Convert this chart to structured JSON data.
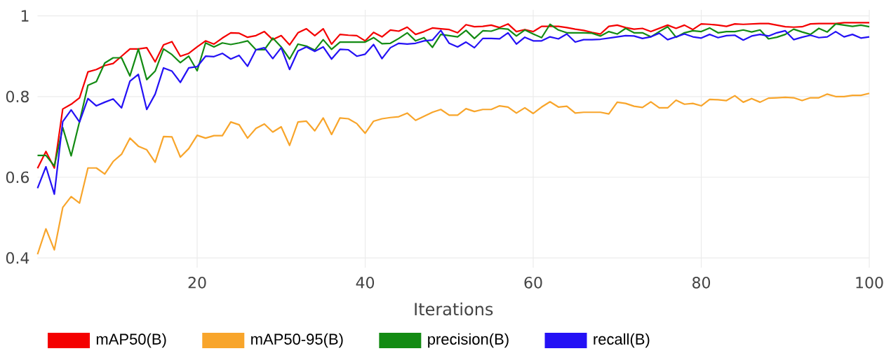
{
  "chart_data": {
    "type": "line",
    "xlabel": "Iterations",
    "x": [
      1,
      2,
      3,
      4,
      5,
      6,
      7,
      8,
      9,
      10,
      11,
      12,
      13,
      14,
      15,
      16,
      17,
      18,
      19,
      20,
      21,
      22,
      23,
      24,
      25,
      26,
      27,
      28,
      29,
      30,
      31,
      32,
      33,
      34,
      35,
      36,
      37,
      38,
      39,
      40,
      41,
      42,
      43,
      44,
      45,
      46,
      47,
      48,
      49,
      50,
      51,
      52,
      53,
      54,
      55,
      56,
      57,
      58,
      59,
      60,
      61,
      62,
      63,
      64,
      65,
      66,
      67,
      68,
      69,
      70,
      71,
      72,
      73,
      74,
      75,
      76,
      77,
      78,
      79,
      80,
      81,
      82,
      83,
      84,
      85,
      86,
      87,
      88,
      89,
      90,
      91,
      92,
      93,
      94,
      95,
      96,
      97,
      98,
      99,
      100
    ],
    "xlim": [
      1,
      100
    ],
    "xticks": [
      20,
      40,
      60,
      80,
      100
    ],
    "ylim": [
      0.376,
      1.015
    ],
    "yticks": [
      0.4,
      0.6,
      0.8,
      1
    ],
    "grid": true,
    "legend": "bottom",
    "series": [
      {
        "name": "mAP50(B)",
        "color": "#f40000",
        "values": [
          0.622,
          0.664,
          0.623,
          0.769,
          0.781,
          0.797,
          0.861,
          0.867,
          0.877,
          0.882,
          0.9,
          0.918,
          0.918,
          0.921,
          0.886,
          0.928,
          0.936,
          0.9,
          0.907,
          0.923,
          0.938,
          0.93,
          0.945,
          0.958,
          0.957,
          0.947,
          0.951,
          0.961,
          0.941,
          0.951,
          0.928,
          0.958,
          0.968,
          0.951,
          0.968,
          0.93,
          0.954,
          0.952,
          0.951,
          0.938,
          0.959,
          0.948,
          0.965,
          0.962,
          0.972,
          0.954,
          0.961,
          0.97,
          0.968,
          0.966,
          0.958,
          0.978,
          0.973,
          0.974,
          0.977,
          0.971,
          0.98,
          0.961,
          0.966,
          0.961,
          0.974,
          0.974,
          0.974,
          0.971,
          0.967,
          0.964,
          0.959,
          0.955,
          0.974,
          0.977,
          0.971,
          0.967,
          0.969,
          0.961,
          0.969,
          0.977,
          0.969,
          0.977,
          0.966,
          0.98,
          0.979,
          0.977,
          0.974,
          0.98,
          0.979,
          0.98,
          0.981,
          0.981,
          0.977,
          0.973,
          0.972,
          0.973,
          0.98,
          0.981,
          0.981,
          0.981,
          0.983,
          0.983,
          0.983,
          0.983
        ]
      },
      {
        "name": "mAP50-95(B)",
        "color": "#f8a52b",
        "values": [
          0.409,
          0.472,
          0.42,
          0.525,
          0.552,
          0.536,
          0.623,
          0.623,
          0.608,
          0.639,
          0.657,
          0.697,
          0.677,
          0.668,
          0.637,
          0.701,
          0.7,
          0.65,
          0.671,
          0.704,
          0.697,
          0.703,
          0.703,
          0.737,
          0.73,
          0.697,
          0.721,
          0.732,
          0.712,
          0.725,
          0.679,
          0.737,
          0.739,
          0.715,
          0.747,
          0.706,
          0.747,
          0.745,
          0.733,
          0.709,
          0.739,
          0.745,
          0.748,
          0.75,
          0.759,
          0.741,
          0.751,
          0.761,
          0.768,
          0.754,
          0.754,
          0.77,
          0.763,
          0.768,
          0.768,
          0.777,
          0.774,
          0.759,
          0.772,
          0.758,
          0.774,
          0.787,
          0.774,
          0.776,
          0.759,
          0.761,
          0.761,
          0.761,
          0.757,
          0.786,
          0.783,
          0.776,
          0.773,
          0.787,
          0.772,
          0.772,
          0.791,
          0.781,
          0.783,
          0.777,
          0.793,
          0.792,
          0.79,
          0.802,
          0.786,
          0.795,
          0.786,
          0.796,
          0.797,
          0.798,
          0.797,
          0.79,
          0.797,
          0.797,
          0.806,
          0.8,
          0.8,
          0.803,
          0.803,
          0.808
        ]
      },
      {
        "name": "precision(B)",
        "color": "#138b13",
        "values": [
          0.654,
          0.654,
          0.628,
          0.723,
          0.653,
          0.738,
          0.828,
          0.837,
          0.883,
          0.896,
          0.896,
          0.851,
          0.918,
          0.842,
          0.863,
          0.918,
          0.904,
          0.884,
          0.9,
          0.864,
          0.933,
          0.923,
          0.933,
          0.929,
          0.933,
          0.938,
          0.916,
          0.916,
          0.945,
          0.923,
          0.893,
          0.93,
          0.925,
          0.915,
          0.941,
          0.917,
          0.935,
          0.935,
          0.935,
          0.935,
          0.946,
          0.931,
          0.932,
          0.944,
          0.958,
          0.938,
          0.946,
          0.922,
          0.954,
          0.951,
          0.948,
          0.964,
          0.944,
          0.963,
          0.962,
          0.969,
          0.967,
          0.95,
          0.965,
          0.955,
          0.946,
          0.979,
          0.965,
          0.958,
          0.958,
          0.958,
          0.957,
          0.95,
          0.961,
          0.955,
          0.969,
          0.958,
          0.958,
          0.948,
          0.961,
          0.973,
          0.947,
          0.958,
          0.963,
          0.961,
          0.97,
          0.958,
          0.961,
          0.961,
          0.965,
          0.96,
          0.965,
          0.943,
          0.947,
          0.954,
          0.967,
          0.96,
          0.954,
          0.969,
          0.96,
          0.98,
          0.977,
          0.974,
          0.977,
          0.973
        ]
      },
      {
        "name": "recall(B)",
        "color": "#2411f5",
        "values": [
          0.573,
          0.626,
          0.558,
          0.738,
          0.767,
          0.737,
          0.795,
          0.777,
          0.786,
          0.794,
          0.772,
          0.838,
          0.855,
          0.768,
          0.806,
          0.871,
          0.863,
          0.835,
          0.871,
          0.874,
          0.9,
          0.899,
          0.907,
          0.893,
          0.902,
          0.875,
          0.916,
          0.921,
          0.894,
          0.921,
          0.867,
          0.913,
          0.923,
          0.912,
          0.923,
          0.893,
          0.917,
          0.916,
          0.9,
          0.905,
          0.929,
          0.894,
          0.921,
          0.932,
          0.93,
          0.932,
          0.938,
          0.94,
          0.964,
          0.932,
          0.923,
          0.935,
          0.921,
          0.944,
          0.944,
          0.943,
          0.958,
          0.93,
          0.947,
          0.938,
          0.938,
          0.948,
          0.943,
          0.955,
          0.935,
          0.941,
          0.941,
          0.942,
          0.945,
          0.948,
          0.951,
          0.95,
          0.944,
          0.948,
          0.957,
          0.941,
          0.948,
          0.955,
          0.948,
          0.945,
          0.954,
          0.946,
          0.951,
          0.952,
          0.94,
          0.95,
          0.954,
          0.95,
          0.958,
          0.963,
          0.941,
          0.947,
          0.952,
          0.946,
          0.948,
          0.961,
          0.948,
          0.954,
          0.945,
          0.948
        ]
      }
    ]
  }
}
